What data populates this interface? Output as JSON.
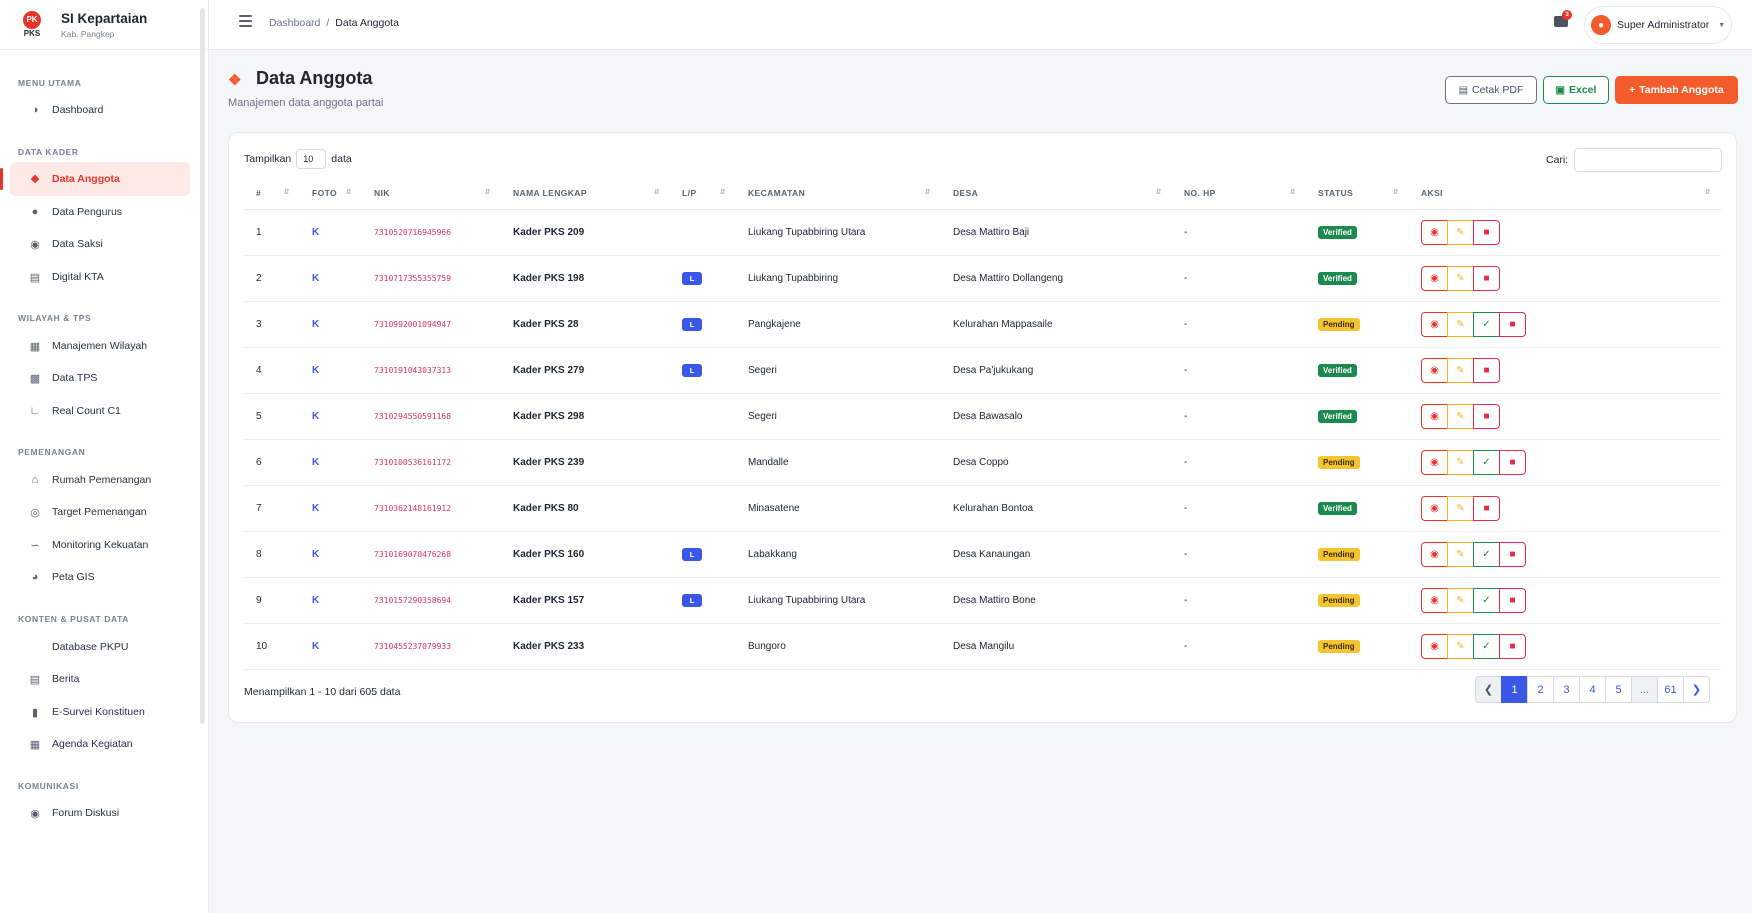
{
  "app": {
    "title": "SI Kepartaian",
    "subtitle": "Kab. Pangkep",
    "logo_top": "PK",
    "logo_text": "PKS",
    "accent": "#e8352b",
    "primary": "#3a57e8"
  },
  "sidebar": {
    "sections": [
      {
        "label": "MENU UTAMA",
        "items": [
          {
            "label": "Dashboard",
            "icon": "dashboard-icon"
          }
        ]
      },
      {
        "label": "DATA KADER",
        "items": [
          {
            "label": "Data Anggota",
            "icon": "users-icon",
            "active": true
          },
          {
            "label": "Data Pengurus",
            "icon": "user-icon"
          },
          {
            "label": "Data Saksi",
            "icon": "user-check-icon"
          },
          {
            "label": "Digital KTA",
            "icon": "id-card-icon"
          }
        ]
      },
      {
        "label": "WILAYAH & TPS",
        "items": [
          {
            "label": "Manajemen Wilayah",
            "icon": "map-icon"
          },
          {
            "label": "Data TPS",
            "icon": "inbox-icon"
          },
          {
            "label": "Real Count C1",
            "icon": "chart-icon"
          }
        ]
      },
      {
        "label": "PEMENANGAN",
        "items": [
          {
            "label": "Rumah Pemenangan",
            "icon": "home-icon"
          },
          {
            "label": "Target Pemenangan",
            "icon": "target-icon"
          },
          {
            "label": "Monitoring Kekuatan",
            "icon": "line-chart-icon"
          },
          {
            "label": "Peta GIS",
            "icon": "globe-icon"
          }
        ]
      },
      {
        "label": "KONTEN & PUSAT DATA",
        "items": [
          {
            "label": "Database PKPU",
            "icon": "database-icon"
          },
          {
            "label": "Berita",
            "icon": "newspaper-icon"
          },
          {
            "label": "E-Survei Konstituen",
            "icon": "clipboard-icon"
          },
          {
            "label": "Agenda Kegiatan",
            "icon": "calendar-icon"
          }
        ]
      },
      {
        "label": "KOMUNIKASI",
        "items": [
          {
            "label": "Forum Diskusi",
            "icon": "comments-icon"
          }
        ]
      }
    ]
  },
  "topbar": {
    "breadcrumb": [
      "Dashboard",
      "Data Anggota"
    ],
    "mail_count": "3",
    "user_name": "Super Administrator"
  },
  "page": {
    "title": "Data Anggota",
    "subtitle": "Manajemen data anggota partai",
    "buttons": {
      "pdf": "Cetak PDF",
      "excel": "Excel",
      "add": "Tambah Anggota"
    }
  },
  "table": {
    "show_label": "Tampilkan",
    "show_value": "10",
    "show_suffix": "data",
    "search_label": "Cari:",
    "search_value": "",
    "columns": [
      "#",
      "FOTO",
      "NIK",
      "NAMA LENGKAP",
      "L/P",
      "KECAMATAN",
      "DESA",
      "NO. HP",
      "STATUS",
      "AKSI"
    ],
    "rows": [
      {
        "no": "1",
        "foto": "K",
        "nik": "7310520716945966",
        "nama": "Kader PKS 209",
        "lp": "",
        "kecamatan": "Liukang Tupabbiring Utara",
        "desa": "Desa Mattiro Baji",
        "hp": "-",
        "status": "Verified"
      },
      {
        "no": "2",
        "foto": "K",
        "nik": "7310717355355759",
        "nama": "Kader PKS 198",
        "lp": "L",
        "kecamatan": "Liukang Tupabbiring",
        "desa": "Desa Mattiro Dollangeng",
        "hp": "-",
        "status": "Verified"
      },
      {
        "no": "3",
        "foto": "K",
        "nik": "7310992001094947",
        "nama": "Kader PKS 28",
        "lp": "L",
        "kecamatan": "Pangkajene",
        "desa": "Kelurahan Mappasaile",
        "hp": "-",
        "status": "Pending"
      },
      {
        "no": "4",
        "foto": "K",
        "nik": "7310191043037313",
        "nama": "Kader PKS 279",
        "lp": "L",
        "kecamatan": "Segeri",
        "desa": "Desa Pa'jukukang",
        "hp": "-",
        "status": "Verified"
      },
      {
        "no": "5",
        "foto": "K",
        "nik": "7310294550591168",
        "nama": "Kader PKS 298",
        "lp": "",
        "kecamatan": "Segeri",
        "desa": "Desa Bawasalo",
        "hp": "-",
        "status": "Verified"
      },
      {
        "no": "6",
        "foto": "K",
        "nik": "7310100536161172",
        "nama": "Kader PKS 239",
        "lp": "",
        "kecamatan": "Mandalle",
        "desa": "Desa Coppo",
        "hp": "-",
        "status": "Pending"
      },
      {
        "no": "7",
        "foto": "K",
        "nik": "7310362148161912",
        "nama": "Kader PKS 80",
        "lp": "",
        "kecamatan": "Minasatene",
        "desa": "Kelurahan Bontoa",
        "hp": "-",
        "status": "Verified"
      },
      {
        "no": "8",
        "foto": "K",
        "nik": "7310169070476268",
        "nama": "Kader PKS 160",
        "lp": "L",
        "kecamatan": "Labakkang",
        "desa": "Desa Kanaungan",
        "hp": "-",
        "status": "Pending"
      },
      {
        "no": "9",
        "foto": "K",
        "nik": "7310157290358694",
        "nama": "Kader PKS 157",
        "lp": "L",
        "kecamatan": "Liukang Tupabbiring Utara",
        "desa": "Desa Mattiro Bone",
        "hp": "-",
        "status": "Pending"
      },
      {
        "no": "10",
        "foto": "K",
        "nik": "7310455237079933",
        "nama": "Kader PKS 233",
        "lp": "",
        "kecamatan": "Bungoro",
        "desa": "Desa Mangilu",
        "hp": "-",
        "status": "Pending"
      }
    ],
    "info": "Menampilkan 1 - 10 dari 605 data",
    "pages": [
      "1",
      "2",
      "3",
      "4",
      "5",
      "...",
      "61"
    ],
    "current_page": "1"
  }
}
